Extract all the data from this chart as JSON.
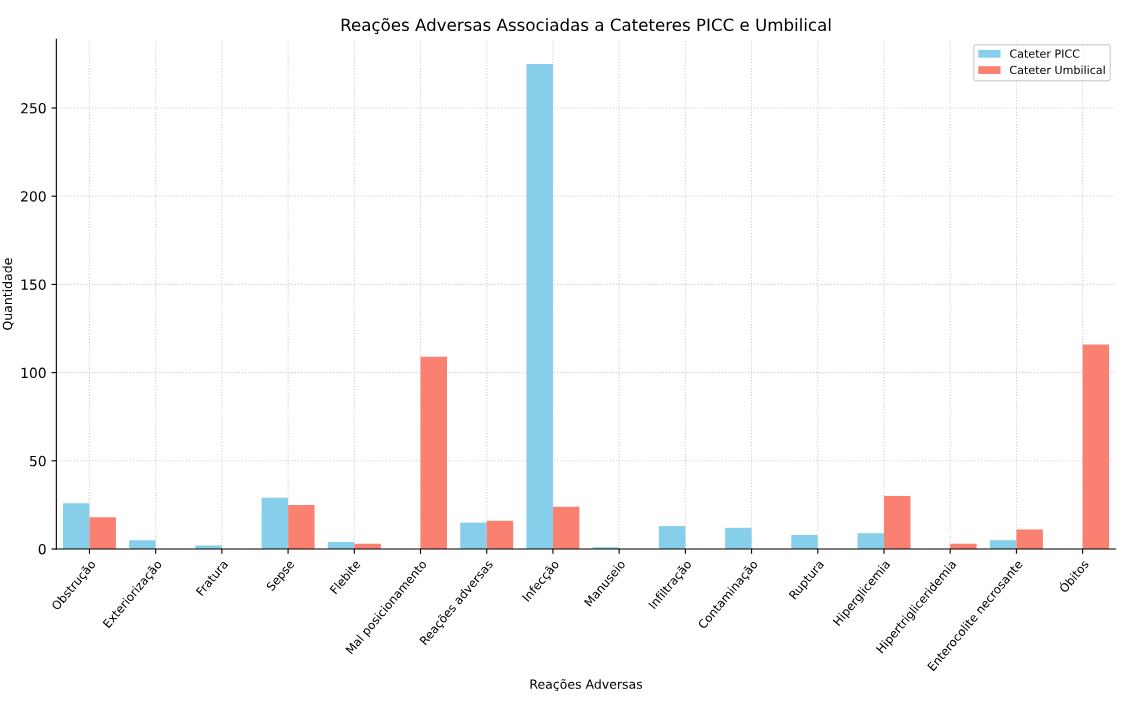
{
  "chart_data": {
    "type": "bar",
    "title": "Reações Adversas Associadas a Cateteres PICC e Umbilical",
    "xlabel": "Reações Adversas",
    "ylabel": "Quantidade",
    "categories": [
      "Obstrução",
      "Exteriorização",
      "Fratura",
      "Sepse",
      "Flebite",
      "Mal posicionamento",
      "Reações adversas",
      "Infecção",
      "Manuseio",
      "Infiltração",
      "Contaminação",
      "Ruptura",
      "Hiperglicemia",
      "Hipertrigliceridemia",
      "Enterocolite necrosante",
      "Óbitos"
    ],
    "series": [
      {
        "name": "Cateter PICC",
        "color": "#87ceeb",
        "values": [
          26,
          5,
          2,
          29,
          4,
          0,
          15,
          275,
          1,
          13,
          12,
          8,
          9,
          0,
          5,
          0
        ]
      },
      {
        "name": "Cateter Umbilical",
        "color": "#fa8072",
        "values": [
          18,
          0,
          0,
          25,
          3,
          109,
          16,
          24,
          0,
          0,
          0,
          0,
          30,
          3,
          11,
          116
        ]
      }
    ],
    "ylim": [
      0,
      289
    ],
    "yticks": [
      0,
      50,
      100,
      150,
      200,
      250
    ],
    "grid": true,
    "legend": "top right"
  }
}
